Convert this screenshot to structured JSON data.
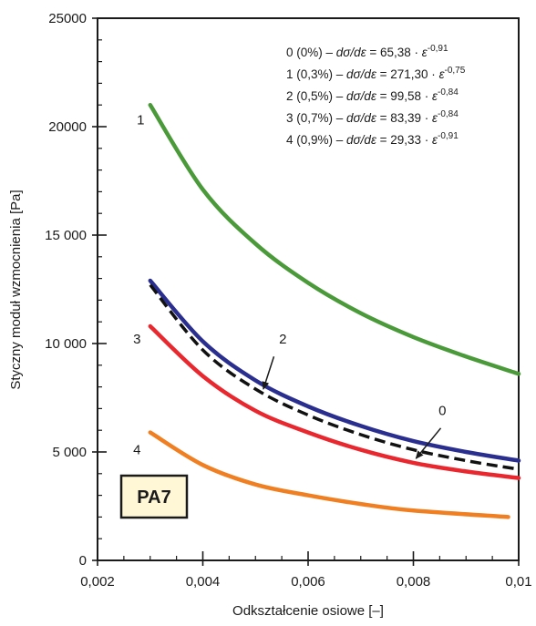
{
  "chart_data": {
    "type": "line",
    "xlabel": "Odkształcenie osiowe [–]",
    "ylabel": "Styczny moduł wzmocnienia [Pa]",
    "xlim": [
      0.002,
      0.01
    ],
    "ylim": [
      0,
      25000
    ],
    "x_ticks": [
      0.002,
      0.004,
      0.006,
      0.008,
      0.01
    ],
    "x_tick_labels": [
      "0,002",
      "0,004",
      "0,006",
      "0,008",
      "0,01"
    ],
    "y_ticks": [
      0,
      5000,
      10000,
      15000,
      20000,
      25000
    ],
    "y_tick_labels": [
      "0",
      "5 000",
      "10 000",
      "15 000",
      "20000",
      "25000"
    ],
    "grid": false,
    "badge": "PA7",
    "legend": [
      {
        "prefix": "0 (0%) – ",
        "expr": "dσ/dε",
        "eq": " = 65,38 · ",
        "var": "ε",
        "exp": "-0,91"
      },
      {
        "prefix": "1 (0,3%) – ",
        "expr": "dσ/dε",
        "eq": " = 271,30 · ",
        "var": "ε",
        "exp": "-0,75"
      },
      {
        "prefix": "2 (0,5%) – ",
        "expr": "dσ/dε",
        "eq": " = 99,58 · ",
        "var": "ε",
        "exp": "-0,84"
      },
      {
        "prefix": "3 (0,7%) – ",
        "expr": "dσ/dε",
        "eq": " = 83,39 · ",
        "var": "ε",
        "exp": "-0,84"
      },
      {
        "prefix": "4 (0,9%) – ",
        "expr": "dσ/dε",
        "eq": " = 29,33 · ",
        "var": "ε",
        "exp": "-0,91"
      }
    ],
    "series": [
      {
        "name": "0",
        "color": "#111111",
        "dashed": true,
        "x": [
          0.003,
          0.004,
          0.005,
          0.006,
          0.007,
          0.008,
          0.009,
          0.01
        ],
        "y": [
          12700,
          9700,
          7900,
          6700,
          5800,
          5100,
          4600,
          4200
        ]
      },
      {
        "name": "1",
        "color": "#4a9a3a",
        "dashed": false,
        "x": [
          0.003,
          0.004,
          0.005,
          0.006,
          0.007,
          0.008,
          0.009,
          0.01
        ],
        "y": [
          21000,
          17100,
          14600,
          12800,
          11400,
          10300,
          9400,
          8600
        ]
      },
      {
        "name": "2",
        "color": "#2a2f8f",
        "dashed": false,
        "x": [
          0.003,
          0.004,
          0.005,
          0.006,
          0.007,
          0.008,
          0.009,
          0.01
        ],
        "y": [
          12900,
          10100,
          8300,
          7100,
          6200,
          5500,
          5000,
          4600
        ]
      },
      {
        "name": "3",
        "color": "#e8282e",
        "dashed": false,
        "x": [
          0.003,
          0.004,
          0.005,
          0.006,
          0.007,
          0.008,
          0.009,
          0.01
        ],
        "y": [
          10800,
          8500,
          6900,
          5900,
          5100,
          4500,
          4100,
          3800
        ]
      },
      {
        "name": "4",
        "color": "#f07f22",
        "dashed": false,
        "x": [
          0.003,
          0.004,
          0.005,
          0.006,
          0.007,
          0.008,
          0.0098
        ],
        "y": [
          5900,
          4400,
          3500,
          3000,
          2600,
          2300,
          2000
        ]
      }
    ],
    "curve_labels": [
      {
        "text": "1",
        "x": 0.00282,
        "y": 20100
      },
      {
        "text": "2",
        "x": 0.00552,
        "y": 10000
      },
      {
        "text": "3",
        "x": 0.00275,
        "y": 10000
      },
      {
        "text": "4",
        "x": 0.00275,
        "y": 4900
      },
      {
        "text": "0",
        "x": 0.00855,
        "y": 6700
      }
    ],
    "annotations": [
      {
        "target": "2",
        "from": [
          0.00535,
          9400
        ],
        "to": [
          0.00515,
          7900
        ]
      },
      {
        "target": "0",
        "from": [
          0.00852,
          6100
        ],
        "to": [
          0.00805,
          4700
        ]
      }
    ]
  }
}
